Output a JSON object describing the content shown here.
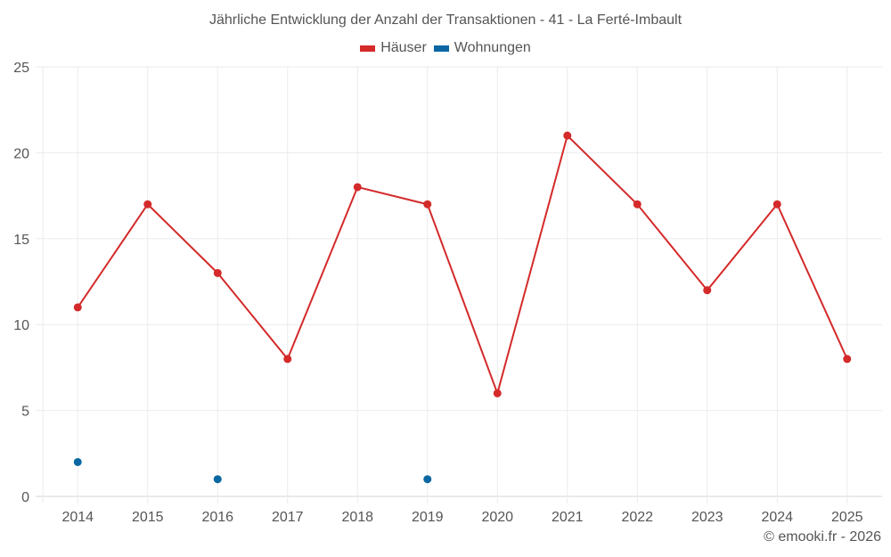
{
  "chart_data": {
    "type": "line",
    "title": "Jährliche Entwicklung der Anzahl der Transaktionen - 41 - La Ferté-Imbault",
    "xlabel": "",
    "ylabel": "",
    "categories": [
      "2014",
      "2015",
      "2016",
      "2017",
      "2018",
      "2019",
      "2020",
      "2021",
      "2022",
      "2023",
      "2024",
      "2025"
    ],
    "series": [
      {
        "name": "Häuser",
        "color": "#d42a2a",
        "mode": "lines+markers",
        "values": [
          11,
          17,
          13,
          8,
          18,
          17,
          6,
          21,
          17,
          12,
          17,
          8
        ]
      },
      {
        "name": "Wohnungen",
        "color": "#0a67a3",
        "mode": "markers",
        "values": [
          2,
          null,
          1,
          null,
          null,
          1,
          null,
          null,
          null,
          null,
          null,
          null
        ]
      }
    ],
    "ylim": [
      0,
      25
    ],
    "yticks": [
      0,
      5,
      10,
      15,
      20,
      25
    ],
    "grid": true,
    "legend_position": "top-center"
  },
  "legend": [
    {
      "label": "Häuser",
      "color": "#d42a2a"
    },
    {
      "label": "Wohnungen",
      "color": "#0a67a3"
    }
  ],
  "credit": "© emooki.fr - 2026"
}
